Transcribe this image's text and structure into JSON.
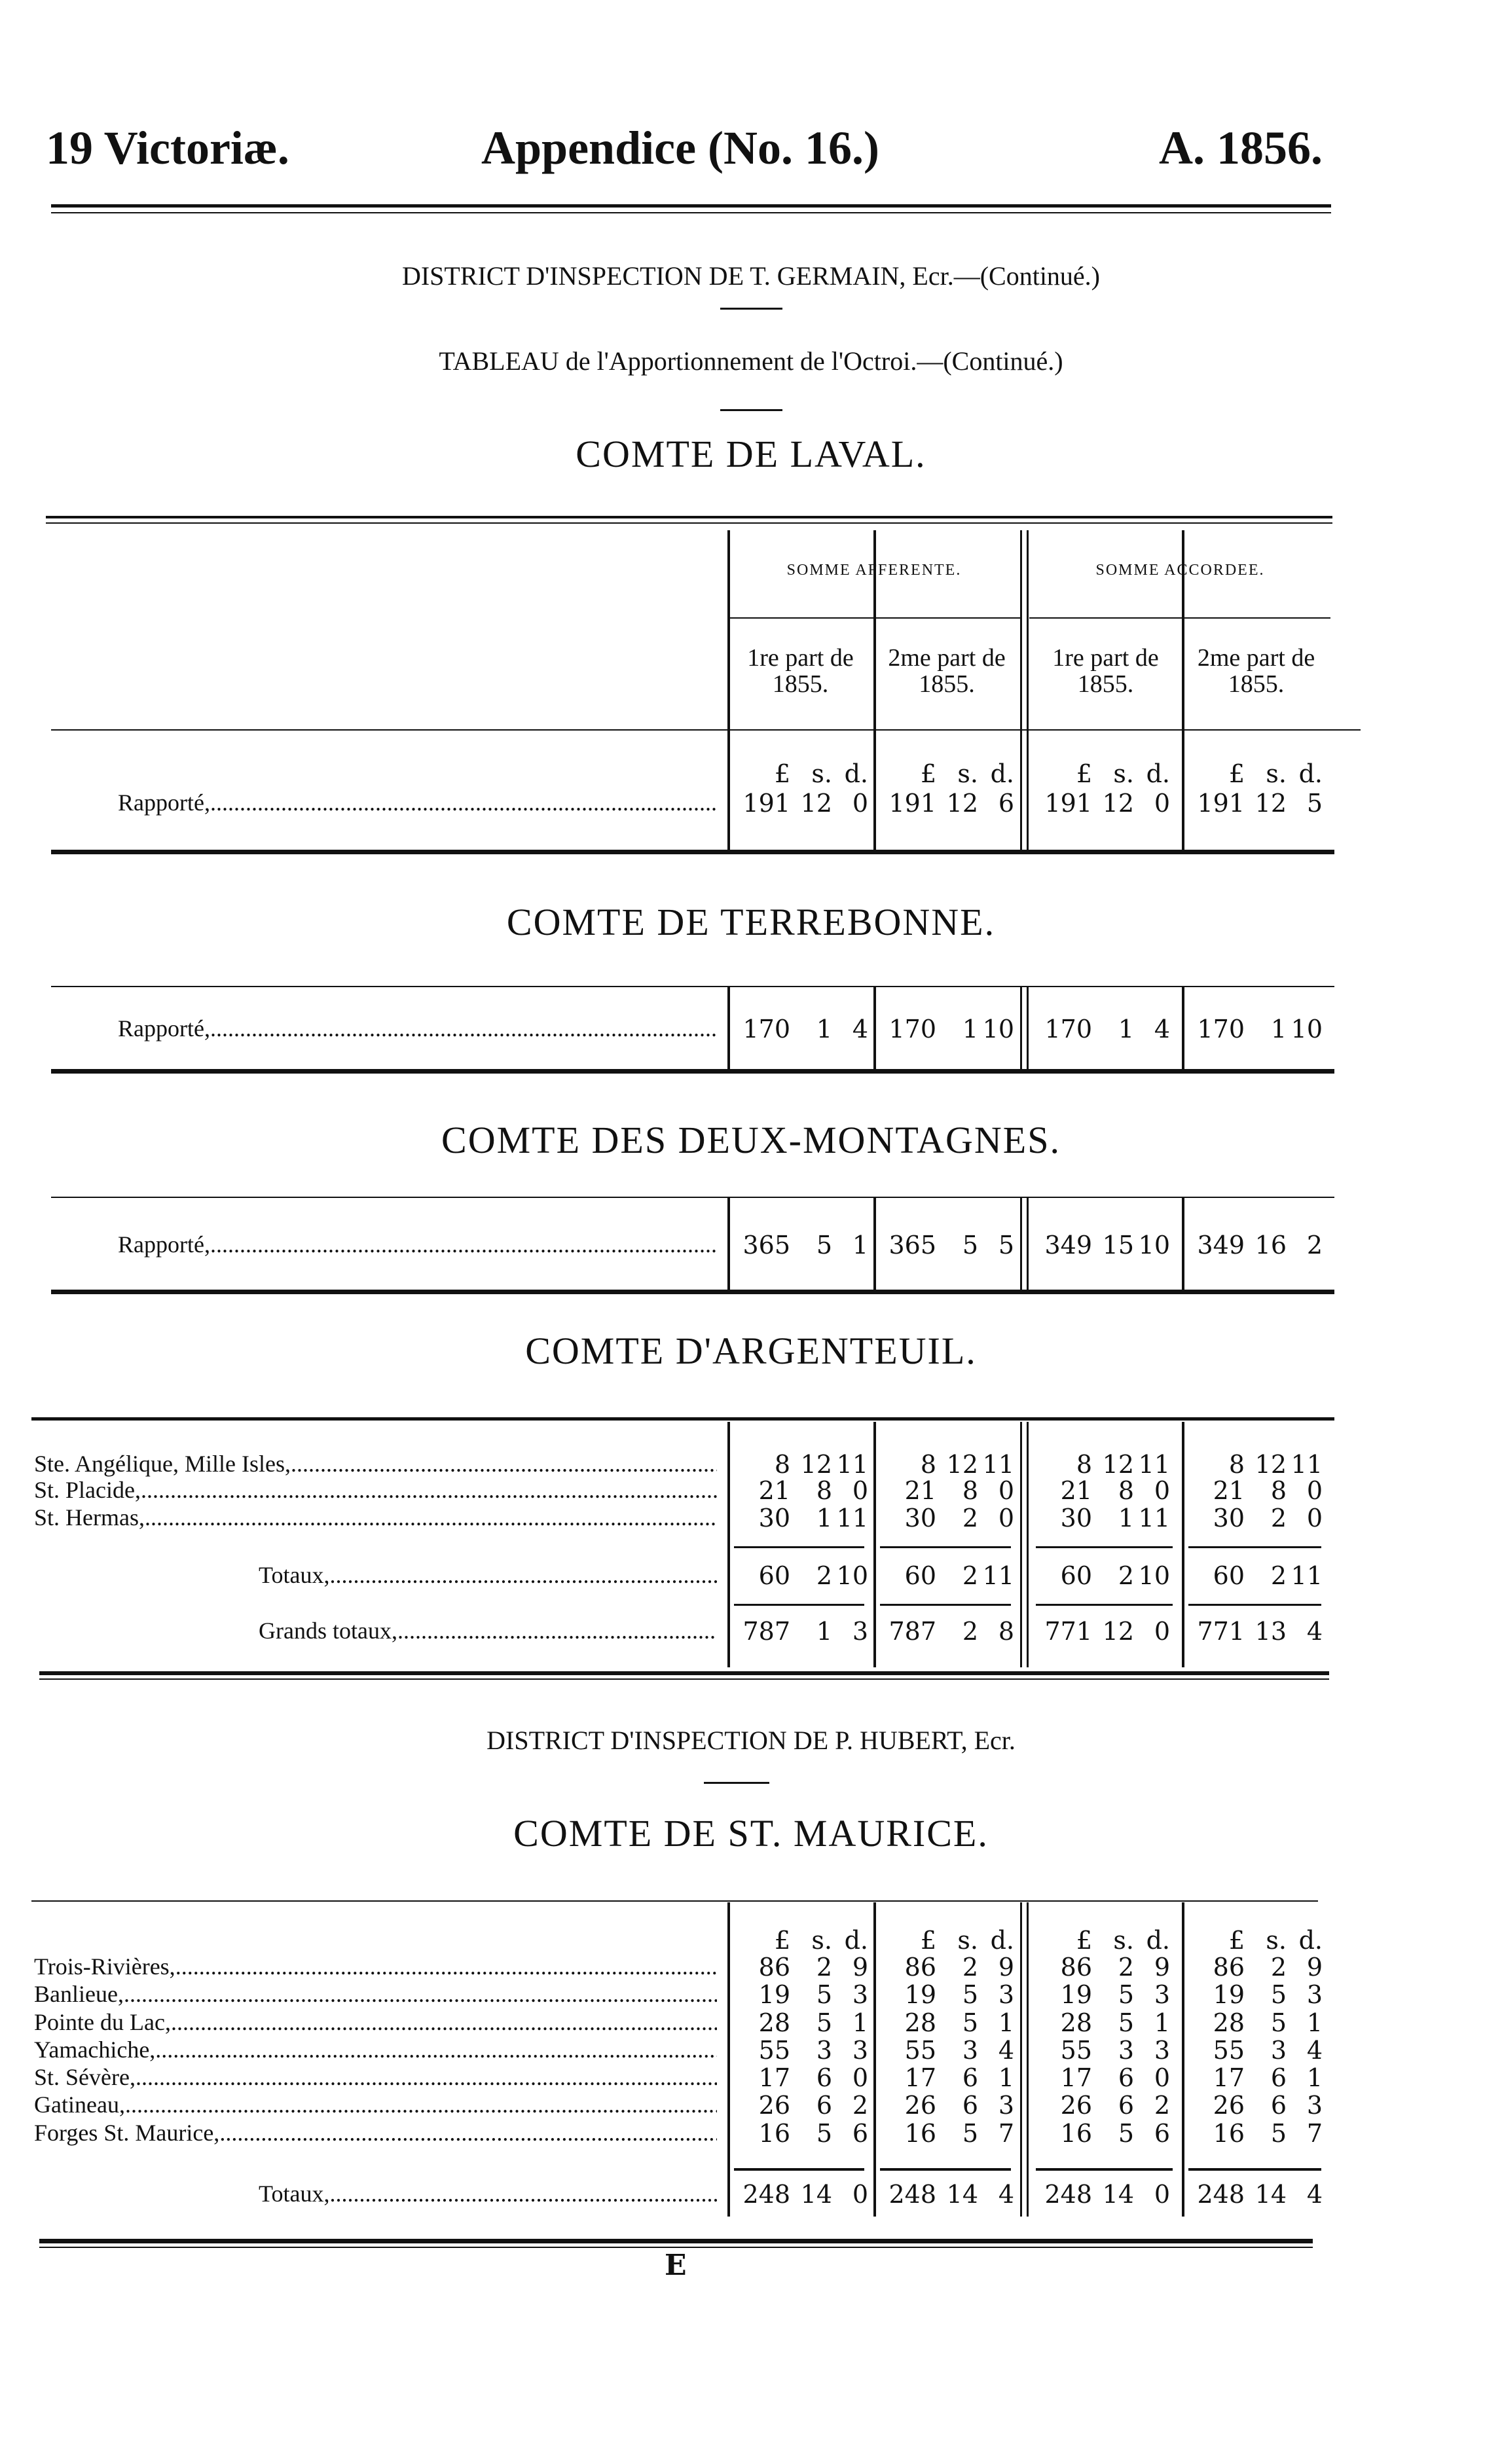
{
  "header": {
    "left": "19 Victoriæ.",
    "center": "Appendice (No. 16.)",
    "right": "A. 1856."
  },
  "district1": "DISTRICT D'INSPECTION DE T. GERMAIN, Ecr.—(Continué.)",
  "tableau": "TABLEAU de l'Apportionnement de l'Octroi.—(Continué.)",
  "columns": {
    "group1": "SOMME AFFERENTE.",
    "group2": "SOMME ACCORDEE.",
    "parts": [
      "1re part de 1855.",
      "2me part de 1855.",
      "1re part de 1855.",
      "2me part de 1855."
    ],
    "units": [
      "£",
      "s.",
      "d."
    ]
  },
  "sections": [
    {
      "title": "COMTE DE LAVAL.",
      "rows": [
        {
          "label": "Rapporté,",
          "values": [
            [
              "191",
              "12",
              "0"
            ],
            [
              "191",
              "12",
              "6"
            ],
            [
              "191",
              "12",
              "0"
            ],
            [
              "191",
              "12",
              "5"
            ]
          ]
        }
      ]
    },
    {
      "title": "COMTE DE TERREBONNE.",
      "rows": [
        {
          "label": "Rapporté,",
          "values": [
            [
              "170",
              "1",
              "4"
            ],
            [
              "170",
              "1",
              "10"
            ],
            [
              "170",
              "1",
              "4"
            ],
            [
              "170",
              "1",
              "10"
            ]
          ]
        }
      ]
    },
    {
      "title": "COMTE DES DEUX-MONTAGNES.",
      "rows": [
        {
          "label": "Rapporté,",
          "values": [
            [
              "365",
              "5",
              "1"
            ],
            [
              "365",
              "5",
              "5"
            ],
            [
              "349",
              "15",
              "10"
            ],
            [
              "349",
              "16",
              "2"
            ]
          ]
        }
      ]
    },
    {
      "title": "COMTE D'ARGENTEUIL.",
      "rows": [
        {
          "label": "Ste. Angélique, Mille Isles,",
          "values": [
            [
              "8",
              "12",
              "11"
            ],
            [
              "8",
              "12",
              "11"
            ],
            [
              "8",
              "12",
              "11"
            ],
            [
              "8",
              "12",
              "11"
            ]
          ]
        },
        {
          "label": "St. Placide,",
          "values": [
            [
              "21",
              "8",
              "0"
            ],
            [
              "21",
              "8",
              "0"
            ],
            [
              "21",
              "8",
              "0"
            ],
            [
              "21",
              "8",
              "0"
            ]
          ]
        },
        {
          "label": "St. Hermas,",
          "values": [
            [
              "30",
              "1",
              "11"
            ],
            [
              "30",
              "2",
              "0"
            ],
            [
              "30",
              "1",
              "11"
            ],
            [
              "30",
              "2",
              "0"
            ]
          ]
        }
      ],
      "totals": {
        "label": "Totaux,",
        "values": [
          [
            "60",
            "2",
            "10"
          ],
          [
            "60",
            "2",
            "11"
          ],
          [
            "60",
            "2",
            "10"
          ],
          [
            "60",
            "2",
            "11"
          ]
        ]
      },
      "grand_totals": {
        "label": "Grands totaux,",
        "values": [
          [
            "787",
            "1",
            "3"
          ],
          [
            "787",
            "2",
            "8"
          ],
          [
            "771",
            "12",
            "0"
          ],
          [
            "771",
            "13",
            "4"
          ]
        ]
      }
    },
    {
      "district": "DISTRICT D'INSPECTION DE P. HUBERT, Ecr.",
      "title": "COMTE DE ST. MAURICE.",
      "rows": [
        {
          "label": "Trois-Rivières,",
          "values": [
            [
              "86",
              "2",
              "9"
            ],
            [
              "86",
              "2",
              "9"
            ],
            [
              "86",
              "2",
              "9"
            ],
            [
              "86",
              "2",
              "9"
            ]
          ]
        },
        {
          "label": "Banlieue,",
          "values": [
            [
              "19",
              "5",
              "3"
            ],
            [
              "19",
              "5",
              "3"
            ],
            [
              "19",
              "5",
              "3"
            ],
            [
              "19",
              "5",
              "3"
            ]
          ]
        },
        {
          "label": "Pointe du Lac,",
          "values": [
            [
              "28",
              "5",
              "1"
            ],
            [
              "28",
              "5",
              "1"
            ],
            [
              "28",
              "5",
              "1"
            ],
            [
              "28",
              "5",
              "1"
            ]
          ]
        },
        {
          "label": "Yamachiche,",
          "values": [
            [
              "55",
              "3",
              "3"
            ],
            [
              "55",
              "3",
              "4"
            ],
            [
              "55",
              "3",
              "3"
            ],
            [
              "55",
              "3",
              "4"
            ]
          ]
        },
        {
          "label": "St. Sévère,",
          "values": [
            [
              "17",
              "6",
              "0"
            ],
            [
              "17",
              "6",
              "1"
            ],
            [
              "17",
              "6",
              "0"
            ],
            [
              "17",
              "6",
              "1"
            ]
          ]
        },
        {
          "label": "Gatineau,",
          "values": [
            [
              "26",
              "6",
              "2"
            ],
            [
              "26",
              "6",
              "3"
            ],
            [
              "26",
              "6",
              "2"
            ],
            [
              "26",
              "6",
              "3"
            ]
          ]
        },
        {
          "label": "Forges St. Maurice,",
          "values": [
            [
              "16",
              "5",
              "6"
            ],
            [
              "16",
              "5",
              "7"
            ],
            [
              "16",
              "5",
              "6"
            ],
            [
              "16",
              "5",
              "7"
            ]
          ]
        }
      ],
      "totals": {
        "label": "Totaux,",
        "values": [
          [
            "248",
            "14",
            "0"
          ],
          [
            "248",
            "14",
            "4"
          ],
          [
            "248",
            "14",
            "0"
          ],
          [
            "248",
            "14",
            "4"
          ]
        ]
      }
    }
  ],
  "footer_signature": "E"
}
